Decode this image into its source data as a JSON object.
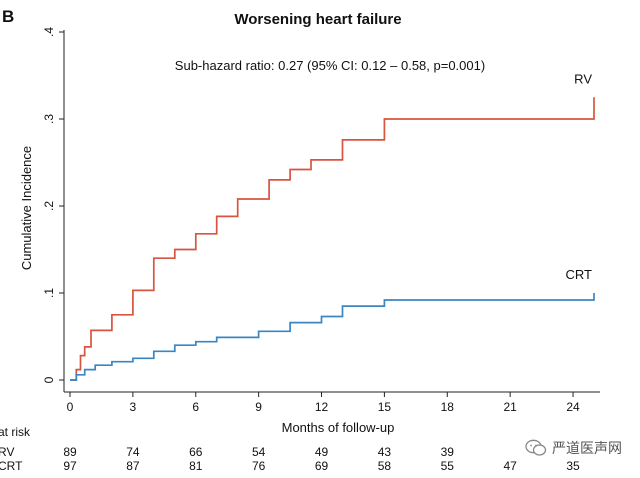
{
  "panel_label": "B",
  "chart_data": {
    "type": "line",
    "subtype": "step",
    "title": "Worsening heart failure",
    "subtitle": "Sub-hazard ratio: 0.27 (95% CI: 0.12 – 0.58, p=0.001)",
    "xlabel": "Months of follow-up",
    "ylabel": "Cumulative Incidence",
    "xlim": [
      0,
      25
    ],
    "ylim": [
      0,
      0.4
    ],
    "x_ticks": [
      0,
      3,
      6,
      9,
      12,
      15,
      18,
      21,
      24
    ],
    "y_ticks": [
      0,
      0.1,
      0.2,
      0.3,
      0.4
    ],
    "y_tick_labels": [
      "0",
      ".1",
      ".2",
      ".3",
      ".4"
    ],
    "grid": false,
    "series": [
      {
        "name": "RV",
        "color": "#d9543f",
        "x": [
          0,
          0.3,
          0.5,
          0.7,
          1.0,
          2.0,
          3.0,
          4.0,
          5.0,
          6.0,
          7.0,
          8.0,
          9.5,
          10.5,
          11.5,
          13.0,
          15.0,
          24.0,
          25.0
        ],
        "y": [
          0.0,
          0.012,
          0.028,
          0.038,
          0.057,
          0.075,
          0.103,
          0.14,
          0.15,
          0.168,
          0.188,
          0.208,
          0.23,
          0.242,
          0.253,
          0.276,
          0.3,
          0.3,
          0.325
        ]
      },
      {
        "name": "CRT",
        "color": "#3a86c4",
        "x": [
          0,
          0.3,
          0.7,
          1.2,
          2.0,
          3.0,
          4.0,
          5.0,
          6.0,
          7.0,
          9.0,
          10.5,
          12.0,
          13.0,
          15.0,
          24.0,
          25.0
        ],
        "y": [
          0.0,
          0.006,
          0.012,
          0.017,
          0.021,
          0.025,
          0.033,
          0.04,
          0.044,
          0.049,
          0.056,
          0.066,
          0.073,
          0.085,
          0.092,
          0.092,
          0.1
        ]
      }
    ],
    "risk_table": {
      "label": "at risk",
      "time_points": [
        0,
        3,
        6,
        9,
        12,
        15,
        18,
        21,
        24
      ],
      "rows": [
        {
          "name": "RV",
          "values": [
            "89",
            "74",
            "66",
            "54",
            "49",
            "43",
            "39",
            "",
            ""
          ]
        },
        {
          "name": "CRT",
          "values": [
            "97",
            "87",
            "81",
            "76",
            "69",
            "58",
            "55",
            "47",
            "35"
          ]
        }
      ]
    }
  },
  "watermark": {
    "text": "严道医声网",
    "icon": "wechat-icon"
  }
}
